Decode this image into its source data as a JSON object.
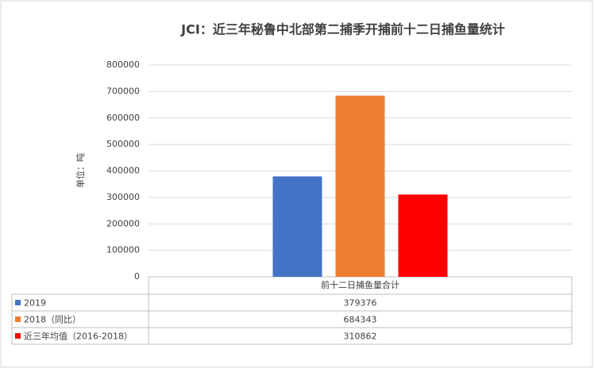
{
  "chart_data": {
    "type": "bar",
    "title": "JCI：近三年秘鲁中北部第二捕季开捕前十二日捕鱼量统计",
    "y_axis_label": "单位：吨",
    "categories": [
      "前十二日捕鱼量合计"
    ],
    "series": [
      {
        "name": "2019",
        "color": "#4472c4",
        "values": [
          379376
        ]
      },
      {
        "name": "2018（同比）",
        "color": "#ed7d31",
        "values": [
          684343
        ]
      },
      {
        "name": "近三年均值（2016-2018）",
        "color": "#ff0000",
        "values": [
          310862
        ]
      }
    ],
    "ylim": [
      0,
      800000
    ],
    "yticks": [
      0,
      100000,
      200000,
      300000,
      400000,
      500000,
      600000,
      700000,
      800000
    ],
    "grid": true
  }
}
